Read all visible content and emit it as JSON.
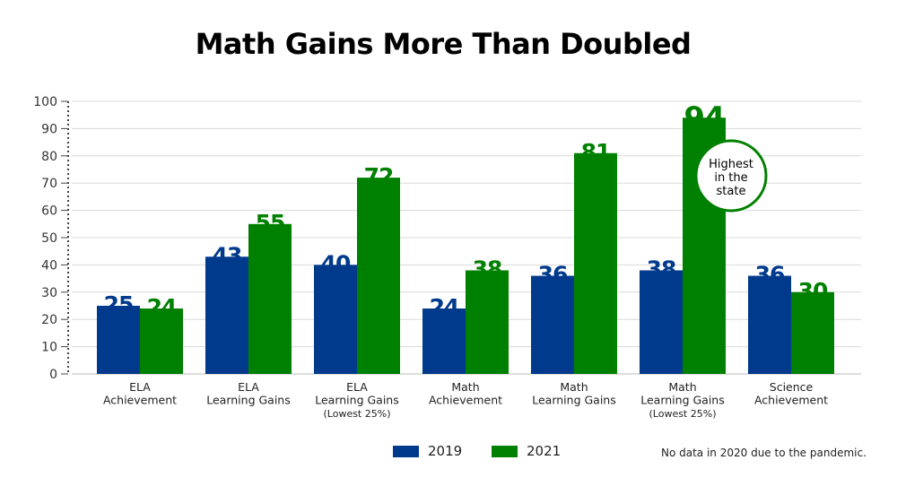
{
  "chart_data": {
    "type": "bar",
    "title": "Math Gains More Than Doubled",
    "categories": [
      [
        "ELA",
        "Achievement"
      ],
      [
        "ELA",
        "Learning Gains"
      ],
      [
        "ELA",
        "Learning Gains",
        "(Lowest 25%)"
      ],
      [
        "Math",
        "Achievement"
      ],
      [
        "Math",
        "Learning Gains"
      ],
      [
        "Math",
        "Learning Gains",
        "(Lowest 25%)"
      ],
      [
        "Science",
        "Achievement"
      ]
    ],
    "series": [
      {
        "name": "2019",
        "color": "#003a8c",
        "values": [
          25,
          43,
          40,
          24,
          36,
          38,
          36
        ]
      },
      {
        "name": "2021",
        "color": "#008000",
        "values": [
          24,
          55,
          72,
          38,
          81,
          94,
          30
        ]
      }
    ],
    "ylim": [
      0,
      100
    ],
    "yticks": [
      0,
      10,
      20,
      30,
      40,
      50,
      60,
      70,
      80,
      90,
      100
    ],
    "grid": true,
    "legend_position": "bottom",
    "annotation": {
      "text": [
        "Highest",
        "in the",
        "state"
      ],
      "category_index": 5,
      "series_index": 1
    }
  },
  "footnote": "No data in 2020 due to the pandemic."
}
